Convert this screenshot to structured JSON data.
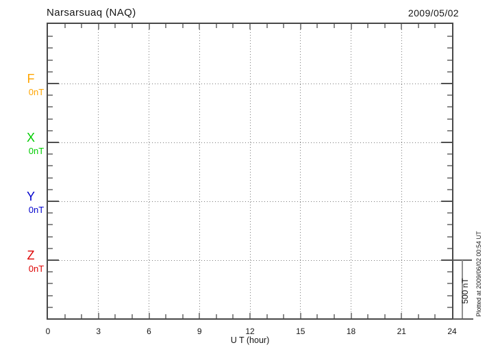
{
  "header": {
    "title": "Narsarsuaq (NAQ)",
    "date": "2009/05/02"
  },
  "chart_data": {
    "type": "line",
    "title": "Narsarsuaq (NAQ)",
    "station": "Narsarsuaq",
    "station_code": "NAQ",
    "date": "2009/05/02",
    "xlabel": "U T (hour)",
    "xlim": [
      0,
      24
    ],
    "x_ticks": [
      0,
      3,
      6,
      9,
      12,
      15,
      18,
      21,
      24
    ],
    "x_minor_tick_step_hours": 1,
    "grid": true,
    "channels": [
      {
        "label": "F",
        "baseline_label": "0nT",
        "baseline_nT": 0,
        "color": "#FFA500",
        "values": []
      },
      {
        "label": "X",
        "baseline_label": "0nT",
        "baseline_nT": 0,
        "color": "#00CC00",
        "values": []
      },
      {
        "label": "Y",
        "baseline_label": "0nT",
        "baseline_nT": 0,
        "color": "#0000CC",
        "values": []
      },
      {
        "label": "Z",
        "baseline_label": "0nT",
        "baseline_nT": 0,
        "color": "#DD0000",
        "values": []
      }
    ],
    "y_scale": {
      "label": "500 nT",
      "nT_per_division": 500,
      "minor_tick_nT": 100
    },
    "footer_note": "Plotted at 2009/06/02 00:54 UT"
  }
}
